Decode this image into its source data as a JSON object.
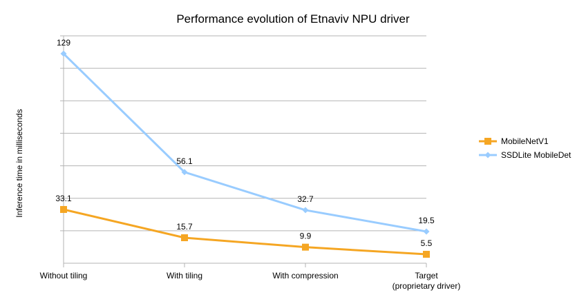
{
  "chart_data": {
    "type": "line",
    "title": "Performance evolution of Etnaviv NPU driver",
    "xlabel": "",
    "ylabel": "Inference time in milliseconds",
    "categories": [
      [
        "Without tiling"
      ],
      [
        "With tiling"
      ],
      [
        "With compression"
      ],
      [
        "Target",
        "(proprietary driver)"
      ]
    ],
    "ylim": [
      0,
      140
    ],
    "y_ticks_shown": false,
    "grid": true,
    "legend_position": "right",
    "series": [
      {
        "name": "MobileNetV1",
        "values": [
          33.1,
          15.7,
          9.9,
          5.5
        ],
        "labels": [
          "33.1",
          "15.7",
          "9.9",
          "5.5"
        ],
        "color": "#f5a623",
        "marker": "square"
      },
      {
        "name": "SSDLite MobileDet",
        "values": [
          129,
          56.1,
          32.7,
          19.5
        ],
        "labels": [
          "129",
          "56.1",
          "32.7",
          "19.5"
        ],
        "color": "#99ccff",
        "marker": "diamond"
      }
    ]
  }
}
